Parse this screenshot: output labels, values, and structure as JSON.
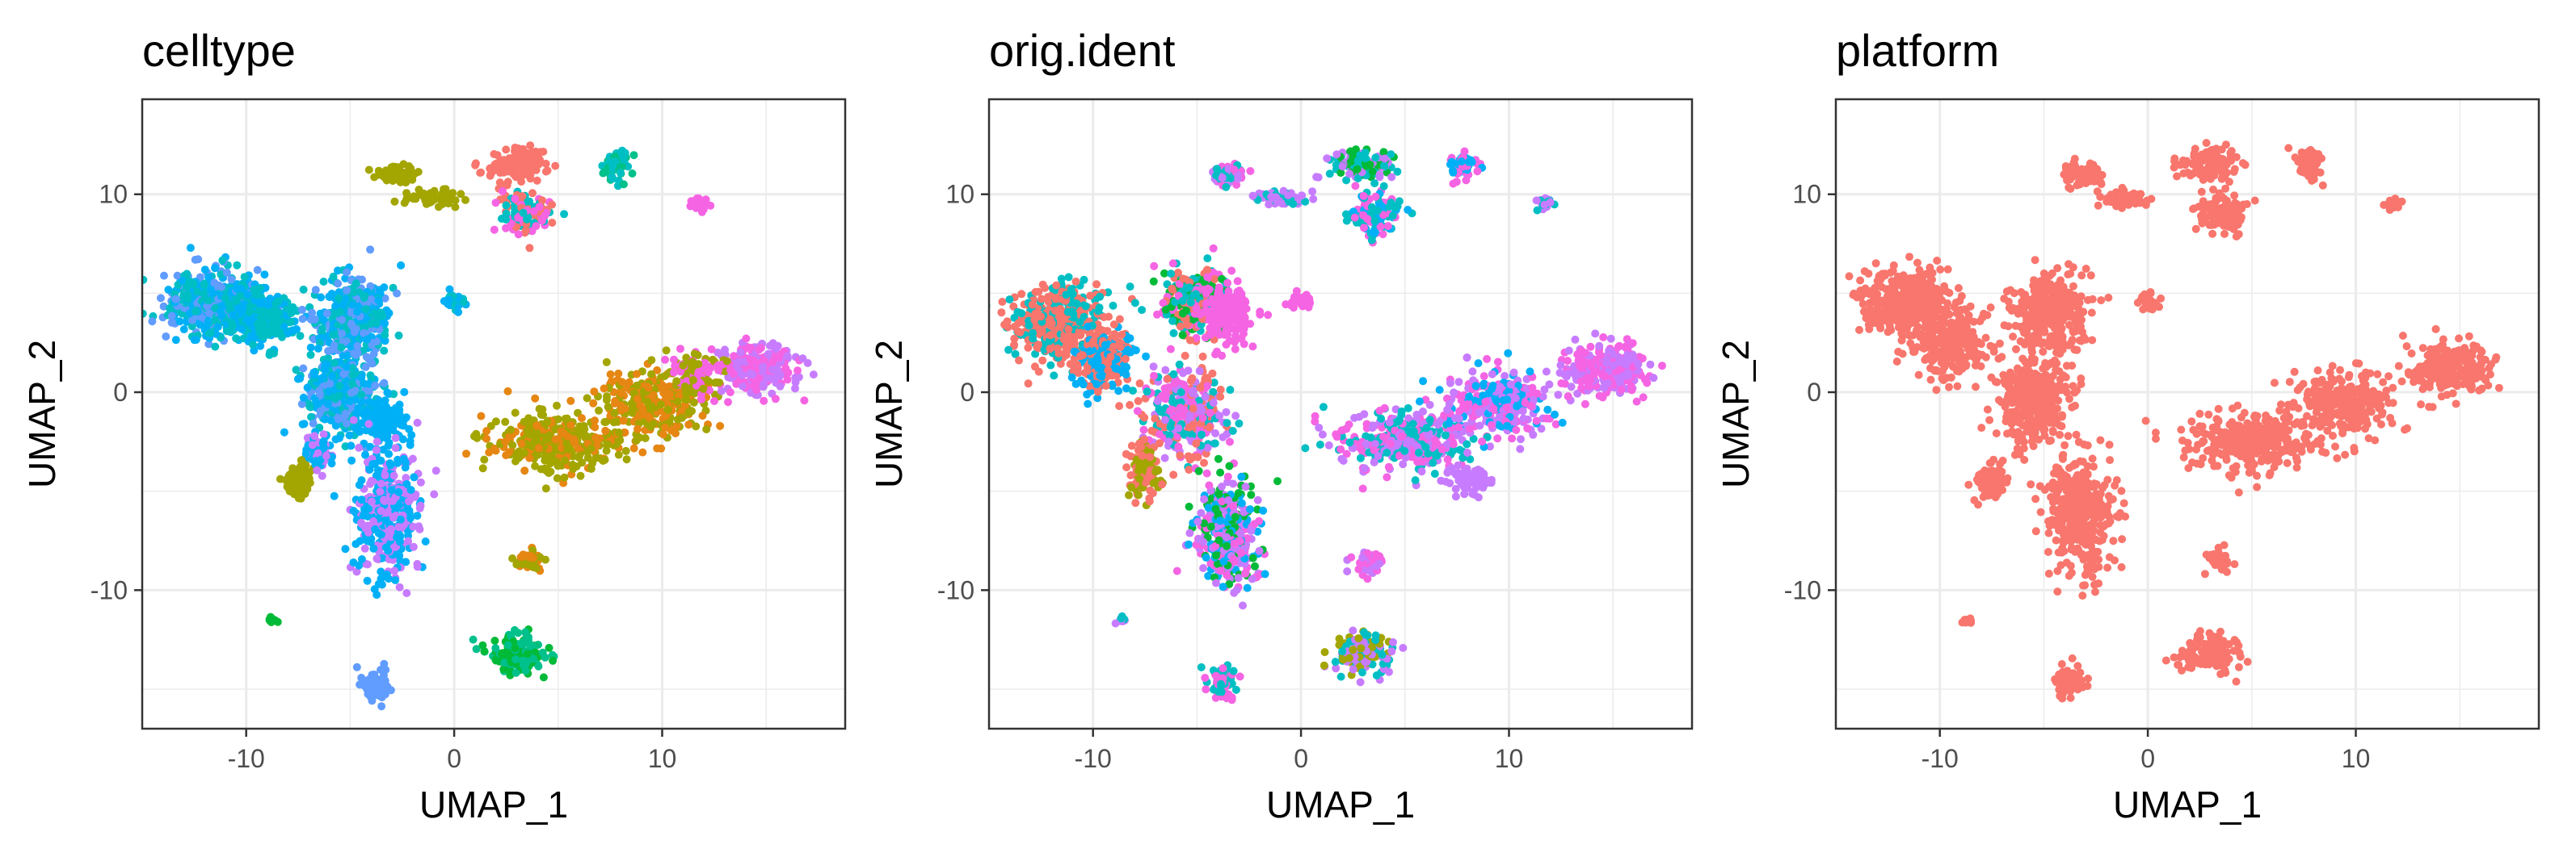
{
  "colors": {
    "grid": "#ebebeb",
    "panel_border": "#333333",
    "tick_text": "#4d4d4d"
  },
  "chart_data": [
    {
      "type": "scatter",
      "title": "celltype",
      "xlabel": "UMAP_1",
      "ylabel": "UMAP_2",
      "xlim": [
        -15,
        18.8
      ],
      "ylim": [
        -17,
        14.8
      ],
      "x_ticks": [
        -10,
        0,
        10
      ],
      "y_ticks": [
        -10,
        0,
        10
      ],
      "grid": true,
      "legend": "none",
      "clusters": [
        {
          "x": -11.5,
          "y": 4.5,
          "w": 2.4,
          "h": 1.6,
          "colors": [
            "#00b0f6",
            "#00bfc4",
            "#619cff"
          ],
          "n": 420
        },
        {
          "x": -9.5,
          "y": 3.8,
          "w": 1.8,
          "h": 1.4,
          "colors": [
            "#00b0f6",
            "#00bfc4"
          ],
          "n": 280
        },
        {
          "x": -4.8,
          "y": 4.0,
          "w": 1.8,
          "h": 2.0,
          "colors": [
            "#00b0f6",
            "#00bfc4",
            "#619cff"
          ],
          "n": 360
        },
        {
          "x": -5.5,
          "y": 0.0,
          "w": 1.8,
          "h": 2.2,
          "colors": [
            "#00b0f6",
            "#619cff",
            "#00bfc4"
          ],
          "n": 340
        },
        {
          "x": -3.5,
          "y": -1.5,
          "w": 1.2,
          "h": 1.2,
          "colors": [
            "#00b0f6"
          ],
          "n": 120
        },
        {
          "x": -3.2,
          "y": -6.0,
          "w": 1.6,
          "h": 3.2,
          "colors": [
            "#c77cff",
            "#00b0f6"
          ],
          "n": 420
        },
        {
          "x": -7.5,
          "y": -4.5,
          "w": 0.7,
          "h": 0.7,
          "colors": [
            "#a3a500"
          ],
          "n": 90
        },
        {
          "x": -6.5,
          "y": -3.0,
          "w": 0.6,
          "h": 1.0,
          "colors": [
            "#00b0f6",
            "#c77cff"
          ],
          "n": 80
        },
        {
          "x": -2.8,
          "y": 11.0,
          "w": 0.9,
          "h": 0.5,
          "colors": [
            "#a3a500"
          ],
          "n": 80
        },
        {
          "x": -1.0,
          "y": 9.8,
          "w": 1.2,
          "h": 0.4,
          "colors": [
            "#a3a500"
          ],
          "n": 60
        },
        {
          "x": 3.0,
          "y": 11.5,
          "w": 1.4,
          "h": 0.8,
          "colors": [
            "#f8766d"
          ],
          "n": 120
        },
        {
          "x": 3.5,
          "y": 9.0,
          "w": 1.2,
          "h": 1.0,
          "colors": [
            "#f564e3",
            "#f8766d",
            "#00bfc4"
          ],
          "n": 120
        },
        {
          "x": 7.8,
          "y": 11.5,
          "w": 0.6,
          "h": 0.8,
          "colors": [
            "#00bfc4",
            "#00c08b"
          ],
          "n": 70
        },
        {
          "x": 11.8,
          "y": 9.5,
          "w": 0.4,
          "h": 0.3,
          "colors": [
            "#f564e3"
          ],
          "n": 25
        },
        {
          "x": 0.0,
          "y": 4.6,
          "w": 0.5,
          "h": 0.4,
          "colors": [
            "#00b0f6",
            "#00bfc4"
          ],
          "n": 30
        },
        {
          "x": 5.0,
          "y": -2.5,
          "w": 3.2,
          "h": 1.5,
          "colors": [
            "#a3a500",
            "#e68613",
            "#a3a500"
          ],
          "n": 360
        },
        {
          "x": 9.5,
          "y": -0.5,
          "w": 2.5,
          "h": 1.6,
          "colors": [
            "#a3a500",
            "#e68613"
          ],
          "n": 280
        },
        {
          "x": 14.5,
          "y": 1.2,
          "w": 2.0,
          "h": 1.3,
          "colors": [
            "#f564e3",
            "#c77cff"
          ],
          "n": 260
        },
        {
          "x": 11.8,
          "y": 1.0,
          "w": 1.2,
          "h": 1.0,
          "colors": [
            "#f564e3",
            "#a3a500"
          ],
          "n": 100
        },
        {
          "x": 3.6,
          "y": -8.5,
          "w": 0.6,
          "h": 0.6,
          "colors": [
            "#e68613",
            "#a3a500"
          ],
          "n": 45
        },
        {
          "x": 3.0,
          "y": -13.2,
          "w": 1.5,
          "h": 1.0,
          "colors": [
            "#00ba38",
            "#00c08b"
          ],
          "n": 140
        },
        {
          "x": -3.8,
          "y": -14.7,
          "w": 0.7,
          "h": 0.8,
          "colors": [
            "#619cff"
          ],
          "n": 70
        },
        {
          "x": -8.7,
          "y": -11.5,
          "w": 0.3,
          "h": 0.2,
          "colors": [
            "#00ba38"
          ],
          "n": 12
        }
      ]
    },
    {
      "type": "scatter",
      "title": "orig.ident",
      "xlabel": "UMAP_1",
      "ylabel": "UMAP_2",
      "xlim": [
        -15,
        18.8
      ],
      "ylim": [
        -17,
        14.8
      ],
      "x_ticks": [
        -10,
        0,
        10
      ],
      "y_ticks": [
        -10,
        0,
        10
      ],
      "grid": true,
      "legend": "none",
      "clusters": [
        {
          "x": -11.5,
          "y": 3.5,
          "w": 2.4,
          "h": 2.0,
          "colors": [
            "#f8766d",
            "#f8766d",
            "#00bfc4"
          ],
          "n": 420
        },
        {
          "x": -9.5,
          "y": 1.5,
          "w": 1.5,
          "h": 1.5,
          "colors": [
            "#f8766d",
            "#00b0f6"
          ],
          "n": 220
        },
        {
          "x": -5.0,
          "y": 4.5,
          "w": 1.6,
          "h": 1.6,
          "colors": [
            "#f564e3",
            "#00bfc4",
            "#00ba38",
            "#f8766d"
          ],
          "n": 340
        },
        {
          "x": -3.5,
          "y": 4.0,
          "w": 1.2,
          "h": 1.4,
          "colors": [
            "#f564e3"
          ],
          "n": 160
        },
        {
          "x": -5.5,
          "y": -1.0,
          "w": 1.8,
          "h": 2.2,
          "colors": [
            "#f564e3",
            "#c77cff",
            "#f8766d",
            "#00bfc4"
          ],
          "n": 340
        },
        {
          "x": -3.5,
          "y": -7.0,
          "w": 1.5,
          "h": 2.6,
          "colors": [
            "#f564e3",
            "#c77cff",
            "#00b0f6",
            "#00ba38"
          ],
          "n": 360
        },
        {
          "x": -7.5,
          "y": -4.0,
          "w": 0.8,
          "h": 1.5,
          "colors": [
            "#f8766d",
            "#a3a500"
          ],
          "n": 110
        },
        {
          "x": -3.5,
          "y": 11.0,
          "w": 0.9,
          "h": 0.5,
          "colors": [
            "#00bfc4",
            "#c77cff",
            "#f564e3"
          ],
          "n": 80
        },
        {
          "x": -1.0,
          "y": 9.8,
          "w": 1.2,
          "h": 0.4,
          "colors": [
            "#c77cff",
            "#00bfc4"
          ],
          "n": 60
        },
        {
          "x": 3.0,
          "y": 11.5,
          "w": 1.4,
          "h": 0.8,
          "colors": [
            "#00bfc4",
            "#00ba38",
            "#c77cff"
          ],
          "n": 120
        },
        {
          "x": 3.5,
          "y": 9.0,
          "w": 1.2,
          "h": 1.0,
          "colors": [
            "#f564e3",
            "#00bfc4",
            "#00b0f6"
          ],
          "n": 120
        },
        {
          "x": 7.8,
          "y": 11.5,
          "w": 0.6,
          "h": 0.8,
          "colors": [
            "#00b0f6",
            "#f564e3"
          ],
          "n": 70
        },
        {
          "x": 11.8,
          "y": 9.5,
          "w": 0.4,
          "h": 0.3,
          "colors": [
            "#00bfc4",
            "#c77cff"
          ],
          "n": 25
        },
        {
          "x": 0.0,
          "y": 4.6,
          "w": 0.5,
          "h": 0.4,
          "colors": [
            "#f564e3"
          ],
          "n": 30
        },
        {
          "x": 5.0,
          "y": -2.5,
          "w": 3.2,
          "h": 1.5,
          "colors": [
            "#f564e3",
            "#c77cff",
            "#00bfc4"
          ],
          "n": 360
        },
        {
          "x": 9.5,
          "y": -0.5,
          "w": 2.5,
          "h": 1.6,
          "colors": [
            "#c77cff",
            "#f564e3",
            "#00b0f6"
          ],
          "n": 280
        },
        {
          "x": 14.5,
          "y": 1.2,
          "w": 2.0,
          "h": 1.3,
          "colors": [
            "#c77cff",
            "#f564e3"
          ],
          "n": 260
        },
        {
          "x": 8.0,
          "y": -4.5,
          "w": 1.0,
          "h": 0.7,
          "colors": [
            "#c77cff"
          ],
          "n": 60
        },
        {
          "x": 3.2,
          "y": -8.5,
          "w": 0.7,
          "h": 0.6,
          "colors": [
            "#f564e3",
            "#c77cff"
          ],
          "n": 45
        },
        {
          "x": 3.0,
          "y": -13.2,
          "w": 1.5,
          "h": 1.0,
          "colors": [
            "#c77cff",
            "#00bfc4",
            "#a3a500"
          ],
          "n": 140
        },
        {
          "x": -3.8,
          "y": -14.7,
          "w": 0.7,
          "h": 0.8,
          "colors": [
            "#f564e3",
            "#00bfc4"
          ],
          "n": 70
        },
        {
          "x": -8.7,
          "y": -11.5,
          "w": 0.3,
          "h": 0.2,
          "colors": [
            "#c77cff",
            "#00bfc4"
          ],
          "n": 12
        }
      ]
    },
    {
      "type": "scatter",
      "title": "platform",
      "xlabel": "UMAP_1",
      "ylabel": "UMAP_2",
      "xlim": [
        -15,
        18.8
      ],
      "ylim": [
        -17,
        14.8
      ],
      "x_ticks": [
        -10,
        0,
        10
      ],
      "y_ticks": [
        -10,
        0,
        10
      ],
      "grid": true,
      "legend": "none",
      "clusters": [
        {
          "x": -11.5,
          "y": 4.5,
          "w": 2.4,
          "h": 1.6,
          "colors": [
            "#f8766d"
          ],
          "n": 360
        },
        {
          "x": -9.5,
          "y": 2.5,
          "w": 1.8,
          "h": 1.6,
          "colors": [
            "#f8766d"
          ],
          "n": 240
        },
        {
          "x": -4.8,
          "y": 4.0,
          "w": 1.8,
          "h": 2.0,
          "colors": [
            "#f8766d"
          ],
          "n": 320
        },
        {
          "x": -5.5,
          "y": -0.5,
          "w": 1.8,
          "h": 2.2,
          "colors": [
            "#f8766d"
          ],
          "n": 320
        },
        {
          "x": -3.3,
          "y": -6.0,
          "w": 1.6,
          "h": 3.2,
          "colors": [
            "#f8766d"
          ],
          "n": 360
        },
        {
          "x": -7.5,
          "y": -4.5,
          "w": 0.8,
          "h": 1.0,
          "colors": [
            "#f8766d"
          ],
          "n": 90
        },
        {
          "x": -3.0,
          "y": 11.0,
          "w": 0.9,
          "h": 0.5,
          "colors": [
            "#f8766d"
          ],
          "n": 80
        },
        {
          "x": -1.0,
          "y": 9.8,
          "w": 1.2,
          "h": 0.4,
          "colors": [
            "#f8766d"
          ],
          "n": 60
        },
        {
          "x": 3.0,
          "y": 11.5,
          "w": 1.4,
          "h": 0.8,
          "colors": [
            "#f8766d"
          ],
          "n": 110
        },
        {
          "x": 3.5,
          "y": 9.0,
          "w": 1.2,
          "h": 1.0,
          "colors": [
            "#f8766d"
          ],
          "n": 110
        },
        {
          "x": 7.8,
          "y": 11.5,
          "w": 0.6,
          "h": 0.8,
          "colors": [
            "#f8766d"
          ],
          "n": 60
        },
        {
          "x": 11.8,
          "y": 9.5,
          "w": 0.4,
          "h": 0.3,
          "colors": [
            "#f8766d"
          ],
          "n": 25
        },
        {
          "x": 0.0,
          "y": 4.6,
          "w": 0.5,
          "h": 0.4,
          "colors": [
            "#f8766d"
          ],
          "n": 30
        },
        {
          "x": 5.0,
          "y": -2.5,
          "w": 3.2,
          "h": 1.5,
          "colors": [
            "#f8766d"
          ],
          "n": 320
        },
        {
          "x": 9.5,
          "y": -0.5,
          "w": 2.5,
          "h": 1.6,
          "colors": [
            "#f8766d"
          ],
          "n": 260
        },
        {
          "x": 14.5,
          "y": 1.2,
          "w": 2.0,
          "h": 1.3,
          "colors": [
            "#f8766d"
          ],
          "n": 240
        },
        {
          "x": 3.4,
          "y": -8.5,
          "w": 0.6,
          "h": 0.6,
          "colors": [
            "#f8766d"
          ],
          "n": 45
        },
        {
          "x": 3.0,
          "y": -13.2,
          "w": 1.5,
          "h": 1.0,
          "colors": [
            "#f8766d"
          ],
          "n": 130
        },
        {
          "x": -3.8,
          "y": -14.7,
          "w": 0.7,
          "h": 0.8,
          "colors": [
            "#f8766d"
          ],
          "n": 60
        },
        {
          "x": -8.7,
          "y": -11.5,
          "w": 0.3,
          "h": 0.2,
          "colors": [
            "#f8766d"
          ],
          "n": 12
        }
      ]
    }
  ]
}
